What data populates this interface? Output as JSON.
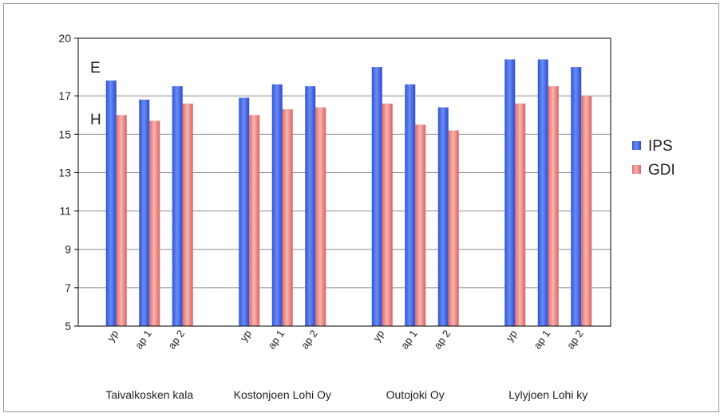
{
  "chart_data": {
    "type": "bar",
    "title": "",
    "xlabel": "",
    "ylabel": "",
    "ylim": [
      5,
      20
    ],
    "yticks": [
      5,
      7,
      9,
      11,
      13,
      15,
      17,
      20
    ],
    "grid": true,
    "legend_position": "right",
    "groups": [
      "Taivalkosken kala",
      "Kostonjoen Lohi Oy",
      "Outojoki Oy",
      "Lylyjoen Lohi ky"
    ],
    "categories": [
      "yp",
      "ap 1",
      "ap 2",
      "yp",
      "ap 1",
      "ap 2",
      "yp",
      "ap 1",
      "ap 2",
      "yp",
      "ap 1",
      "ap 2"
    ],
    "series": [
      {
        "name": "IPS",
        "color": "#4a6ee8",
        "values": [
          17.8,
          16.8,
          17.5,
          16.9,
          17.6,
          17.5,
          18.5,
          17.6,
          16.4,
          18.9,
          18.9,
          18.5
        ]
      },
      {
        "name": "GDI",
        "color": "#f09a9a",
        "values": [
          16.0,
          15.7,
          16.6,
          16.0,
          16.3,
          16.4,
          16.6,
          15.5,
          15.2,
          16.6,
          17.5,
          17.0
        ]
      }
    ],
    "annotations": [
      {
        "text": "E",
        "y_value": 18.5
      },
      {
        "text": "H",
        "y_value": 15.8
      }
    ]
  }
}
